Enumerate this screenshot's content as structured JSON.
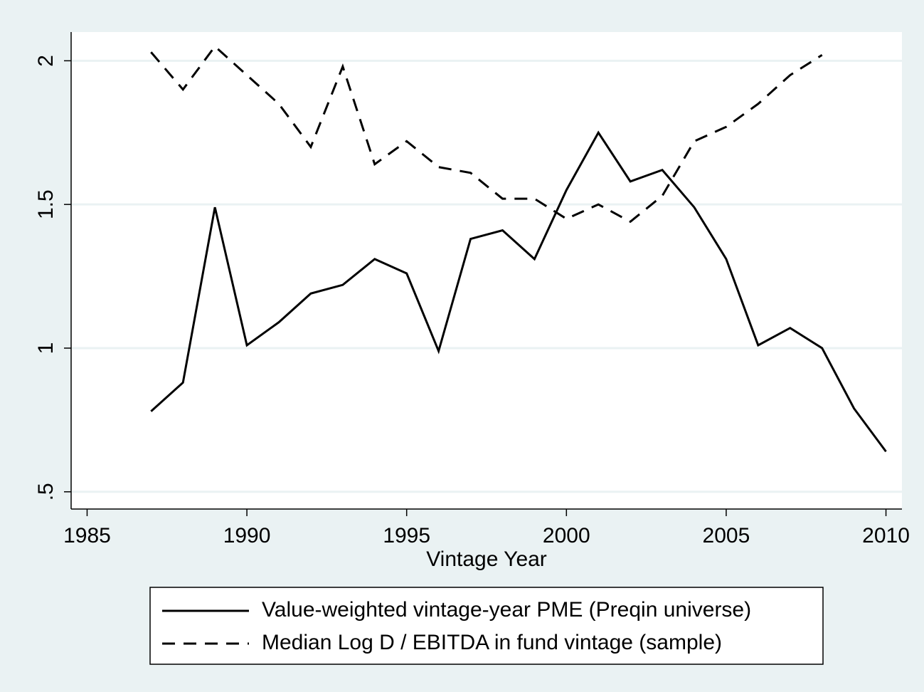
{
  "chart_data": {
    "type": "line",
    "x_label": "Vintage Year",
    "x": [
      1987,
      1988,
      1989,
      1990,
      1991,
      1992,
      1993,
      1994,
      1995,
      1996,
      1997,
      1998,
      1999,
      2000,
      2001,
      2002,
      2003,
      2004,
      2005,
      2006,
      2007,
      2008,
      2009,
      2010
    ],
    "series": [
      {
        "name": "Value-weighted vintage-year PME (Preqin universe)",
        "color": "#000000",
        "line_style": "solid",
        "values": [
          0.78,
          0.88,
          1.49,
          1.01,
          1.09,
          1.19,
          1.22,
          1.31,
          1.26,
          0.99,
          1.38,
          1.41,
          1.31,
          1.55,
          1.75,
          1.58,
          1.62,
          1.49,
          1.31,
          1.01,
          1.07,
          1.0,
          0.79,
          0.64
        ]
      },
      {
        "name": "Median Log D / EBITDA in fund vintage (sample)",
        "color": "#000000",
        "line_style": "dash",
        "values": [
          2.03,
          1.9,
          2.05,
          1.95,
          1.85,
          1.7,
          1.98,
          1.64,
          1.72,
          1.63,
          1.61,
          1.52,
          1.52,
          1.45,
          1.5,
          1.44,
          1.53,
          1.72,
          1.77,
          1.85,
          1.95,
          2.02,
          null,
          null
        ]
      }
    ],
    "xlim": [
      1984.5,
      2010.5
    ],
    "xticks": [
      1985,
      1990,
      1995,
      2000,
      2005,
      2010
    ],
    "ylim": [
      0.44,
      2.1
    ],
    "yticks": [
      {
        "value": 0.5,
        "label": ".5"
      },
      1,
      1.5,
      2
    ],
    "grid": true,
    "grid_color": "#eaf2f3",
    "legend_position": "bottom"
  }
}
